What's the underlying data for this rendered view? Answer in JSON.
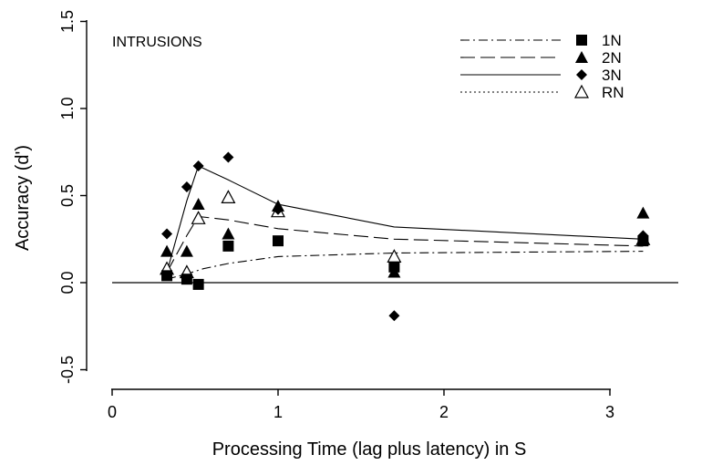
{
  "chart_data": {
    "type": "scatter",
    "title": "",
    "annotation": "INTRUSIONS",
    "xlabel": "Processing Time (lag plus  latency) in S",
    "ylabel": "Accuracy (d')",
    "xlim": [
      -0.15,
      3.55
    ],
    "ylim": [
      -0.58,
      1.52
    ],
    "x_ticks": [
      0,
      1,
      2,
      3
    ],
    "x_tick_labels": [
      "0",
      "1",
      "2",
      "3"
    ],
    "y_ticks": [
      -0.5,
      0.0,
      0.5,
      1.0,
      1.5
    ],
    "y_tick_labels": [
      "-0.5",
      "0.0",
      "0.5",
      "1.0",
      "1.5"
    ],
    "reference_line_y": 0,
    "grid": false,
    "legend_position": "top-right",
    "series": [
      {
        "name": "1N",
        "marker": "filled-square",
        "line_style": "dash-dot",
        "points": [
          [
            0.33,
            0.04
          ],
          [
            0.45,
            0.02
          ],
          [
            0.52,
            -0.01
          ],
          [
            0.7,
            0.21
          ],
          [
            1.0,
            0.24
          ],
          [
            1.7,
            0.09
          ],
          [
            3.2,
            0.24
          ]
        ],
        "fit": [
          [
            0.33,
            0.02
          ],
          [
            0.45,
            0.05
          ],
          [
            0.55,
            0.08
          ],
          [
            0.7,
            0.11
          ],
          [
            1.0,
            0.15
          ],
          [
            1.7,
            0.17
          ],
          [
            3.2,
            0.18
          ]
        ]
      },
      {
        "name": "2N",
        "marker": "filled-triangle",
        "line_style": "long-dash",
        "points": [
          [
            0.33,
            0.18
          ],
          [
            0.45,
            0.18
          ],
          [
            0.52,
            0.45
          ],
          [
            0.7,
            0.28
          ],
          [
            1.0,
            0.44
          ],
          [
            1.7,
            0.06
          ],
          [
            3.2,
            0.4
          ]
        ],
        "fit": [
          [
            0.33,
            0.06
          ],
          [
            0.45,
            0.27
          ],
          [
            0.52,
            0.38
          ],
          [
            0.7,
            0.36
          ],
          [
            1.0,
            0.31
          ],
          [
            1.7,
            0.25
          ],
          [
            3.2,
            0.21
          ]
        ]
      },
      {
        "name": "3N",
        "marker": "filled-diamond",
        "line_style": "solid",
        "points": [
          [
            0.33,
            0.28
          ],
          [
            0.45,
            0.55
          ],
          [
            0.52,
            0.67
          ],
          [
            0.7,
            0.72
          ],
          [
            1.0,
            0.42
          ],
          [
            1.7,
            -0.19
          ],
          [
            3.2,
            0.27
          ]
        ],
        "fit": [
          [
            0.33,
            0.06
          ],
          [
            0.45,
            0.47
          ],
          [
            0.52,
            0.67
          ],
          [
            0.7,
            0.59
          ],
          [
            1.0,
            0.45
          ],
          [
            1.7,
            0.32
          ],
          [
            3.2,
            0.25
          ]
        ]
      },
      {
        "name": "RN",
        "marker": "open-triangle",
        "line_style": "dotted",
        "points": [
          [
            0.33,
            0.08
          ],
          [
            0.45,
            0.06
          ],
          [
            0.52,
            0.37
          ],
          [
            0.7,
            0.49
          ],
          [
            1.0,
            0.41
          ],
          [
            1.7,
            0.15
          ],
          [
            3.2,
            0.25
          ]
        ],
        "fit": []
      }
    ]
  }
}
